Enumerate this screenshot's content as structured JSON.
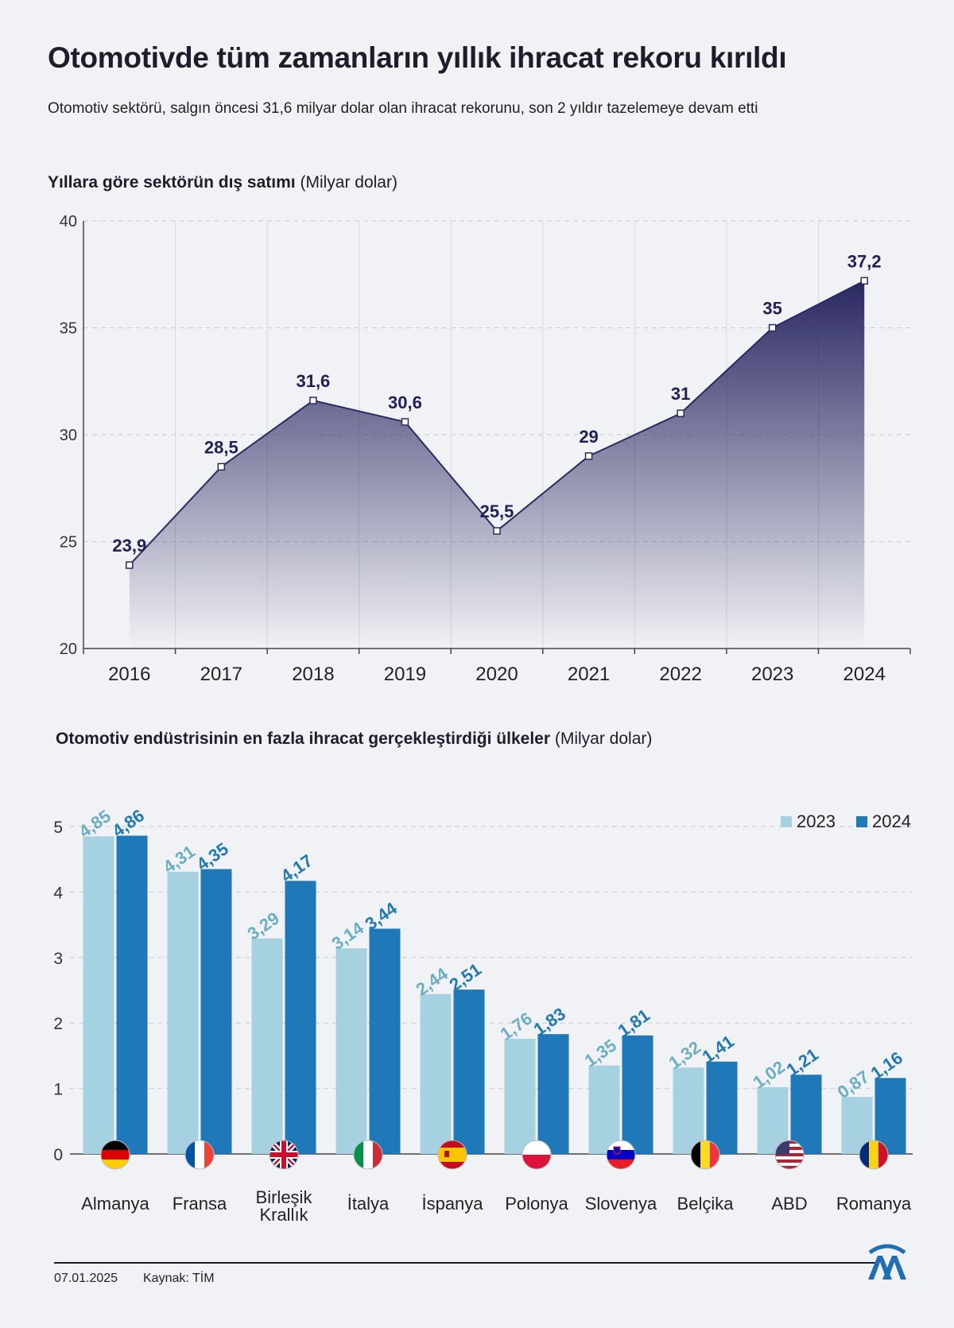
{
  "header": {
    "title": "Otomotivde tüm zamanların yıllık ihracat rekoru kırıldı",
    "subtitle": "Otomotiv sektörü, salgın öncesi 31,6 milyar dolar olan ihracat rekorunu, son 2 yıldır tazelemeye devam etti"
  },
  "line_section": {
    "title": "Yıllara göre sektörün dış satımı",
    "unit": "(Milyar dolar)"
  },
  "bar_section": {
    "title": "Otomotiv endüstrisinin en fazla ihracat gerçekleştirdiği ülkeler",
    "unit": "(Milyar dolar)"
  },
  "footer": {
    "date": "07.01.2025",
    "source": "Kaynak: TİM",
    "logo": "AA"
  },
  "chart_data": [
    {
      "type": "area",
      "x": [
        "2016",
        "2017",
        "2018",
        "2019",
        "2020",
        "2021",
        "2022",
        "2023",
        "2024"
      ],
      "values": [
        23.9,
        28.5,
        31.6,
        30.6,
        25.5,
        29,
        31,
        35,
        37.2
      ],
      "labels": [
        "23,9",
        "28,5",
        "31,6",
        "30,6",
        "25,5",
        "29",
        "31",
        "35",
        "37,2"
      ],
      "ylim": [
        20,
        40
      ],
      "yticks": [
        20,
        25,
        30,
        35,
        40
      ],
      "grid": true,
      "color": "#2b2a63"
    },
    {
      "type": "bar",
      "categories": [
        {
          "name": "Almanya",
          "flag": "germany-flag-icon"
        },
        {
          "name": "Fransa",
          "flag": "france-flag-icon"
        },
        {
          "name": "Birleşik Krallık",
          "flag": "uk-flag-icon"
        },
        {
          "name": "İtalya",
          "flag": "italy-flag-icon"
        },
        {
          "name": "İspanya",
          "flag": "spain-flag-icon"
        },
        {
          "name": "Polonya",
          "flag": "poland-flag-icon"
        },
        {
          "name": "Slovenya",
          "flag": "slovenia-flag-icon"
        },
        {
          "name": "Belçika",
          "flag": "belgium-flag-icon"
        },
        {
          "name": "ABD",
          "flag": "usa-flag-icon"
        },
        {
          "name": "Romanya",
          "flag": "romania-flag-icon"
        }
      ],
      "series": [
        {
          "name": "2023",
          "color": "#a6d1e0",
          "label_color": "#6aaec4",
          "values": [
            4.85,
            4.31,
            3.29,
            3.14,
            2.44,
            1.76,
            1.35,
            1.32,
            1.02,
            0.87
          ],
          "labels": [
            "4,85",
            "4,31",
            "3,29",
            "3,14",
            "2,44",
            "1,76",
            "1,35",
            "1,32",
            "1,02",
            "0,87"
          ]
        },
        {
          "name": "2024",
          "color": "#1f78b8",
          "label_color": "#1f78b8",
          "values": [
            4.86,
            4.35,
            4.17,
            3.44,
            2.51,
            1.83,
            1.81,
            1.41,
            1.21,
            1.16
          ],
          "labels": [
            "4,86",
            "4,35",
            "4,17",
            "3,44",
            "2,51",
            "1,83",
            "1,81",
            "1,41",
            "1,21",
            "1,16"
          ]
        }
      ],
      "ylim": [
        0,
        5
      ],
      "yticks": [
        0,
        1,
        2,
        3,
        4,
        5
      ],
      "legend": "top-right",
      "grid": true
    }
  ]
}
